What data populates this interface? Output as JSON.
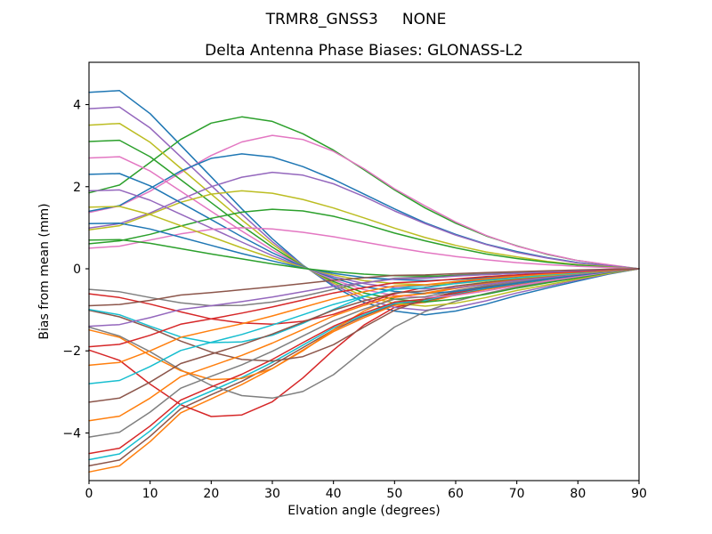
{
  "figure": {
    "suptitle": "TRMR8_GNSS3     NONE",
    "title": "Delta Antenna Phase Biases: GLONASS-L2"
  },
  "chart_data": {
    "type": "line",
    "suptitle": "TRMR8_GNSS3     NONE",
    "title": "Delta Antenna Phase Biases: GLONASS-L2",
    "xlabel": "Elvation angle (degrees)",
    "ylabel": "Bias from mean (mm)",
    "xlim": [
      0,
      90
    ],
    "ylim": [
      -5.16,
      5.03
    ],
    "xticks": {
      "values": [
        0,
        10,
        20,
        30,
        40,
        50,
        60,
        70,
        80,
        90
      ],
      "labels": [
        "0",
        "10",
        "20",
        "30",
        "40",
        "50",
        "60",
        "70",
        "80",
        "90"
      ]
    },
    "yticks": {
      "values": [
        -4,
        -2,
        0,
        2,
        4
      ],
      "labels": [
        "−4",
        "−2",
        "0",
        "2",
        "4"
      ]
    },
    "grid": false,
    "legend": "none",
    "frame_color": "#000000",
    "palette": [
      "#1f77b4",
      "#ff7f0e",
      "#2ca02c",
      "#d62728",
      "#9467bd",
      "#8c564b",
      "#e377c2",
      "#7f7f7f",
      "#bcbd22",
      "#17becf"
    ],
    "x": [
      0,
      5,
      10,
      15,
      20,
      25,
      30,
      35,
      40,
      45,
      50,
      55,
      60,
      65,
      70,
      75,
      80,
      85,
      90
    ],
    "series": [
      {
        "name": "line-01",
        "color": "#1f77b4",
        "y": [
          4.3,
          4.34,
          3.78,
          3.01,
          2.24,
          1.46,
          0.73,
          0.09,
          -0.43,
          -0.82,
          -1.03,
          -1.12,
          -1.03,
          -0.86,
          -0.65,
          -0.47,
          -0.3,
          -0.13,
          0.0
        ]
      },
      {
        "name": "line-02",
        "color": "#ff7f0e",
        "y": [
          -4.95,
          -4.8,
          -4.21,
          -3.51,
          -3.17,
          -2.82,
          -2.43,
          -1.98,
          -1.53,
          -1.19,
          -0.89,
          -0.82,
          -0.64,
          -0.5,
          -0.39,
          -0.27,
          -0.17,
          -0.08,
          0.0
        ]
      },
      {
        "name": "line-03",
        "color": "#2ca02c",
        "y": [
          1.85,
          2.04,
          2.59,
          3.15,
          3.55,
          3.7,
          3.59,
          3.29,
          2.89,
          2.41,
          1.92,
          1.48,
          1.11,
          0.8,
          0.56,
          0.35,
          0.2,
          0.09,
          0.0
        ]
      },
      {
        "name": "line-04",
        "color": "#d62728",
        "y": [
          -1.98,
          -2.23,
          -2.81,
          -3.31,
          -3.6,
          -3.56,
          -3.24,
          -2.66,
          -1.98,
          -1.37,
          -0.94,
          -0.79,
          -0.61,
          -0.47,
          -0.36,
          -0.25,
          -0.16,
          -0.07,
          0.0
        ]
      },
      {
        "name": "line-05",
        "color": "#9467bd",
        "y": [
          3.9,
          3.94,
          3.43,
          2.73,
          2.03,
          1.33,
          0.66,
          0.08,
          -0.39,
          -0.74,
          -0.94,
          -1.01,
          -0.94,
          -0.78,
          -0.59,
          -0.43,
          -0.27,
          -0.12,
          0.0
        ]
      },
      {
        "name": "line-06",
        "color": "#8c564b",
        "y": [
          -4.8,
          -4.66,
          -4.08,
          -3.41,
          -3.07,
          -2.74,
          -2.35,
          -1.92,
          -1.49,
          -1.15,
          -0.86,
          -0.79,
          -0.62,
          -0.48,
          -0.37,
          -0.26,
          -0.17,
          -0.08,
          0.0
        ]
      },
      {
        "name": "line-07",
        "color": "#e377c2",
        "y": [
          1.37,
          1.53,
          1.89,
          2.34,
          2.76,
          3.09,
          3.25,
          3.15,
          2.86,
          2.44,
          1.95,
          1.53,
          1.14,
          0.81,
          0.55,
          0.36,
          0.2,
          0.1,
          0.0
        ]
      },
      {
        "name": "line-08",
        "color": "#7f7f7f",
        "y": [
          -1.42,
          -1.64,
          -2.02,
          -2.46,
          -2.84,
          -3.09,
          -3.15,
          -2.99,
          -2.58,
          -1.98,
          -1.42,
          -1.04,
          -0.79,
          -0.6,
          -0.44,
          -0.32,
          -0.19,
          -0.09,
          0.0
        ]
      },
      {
        "name": "line-09",
        "color": "#bcbd22",
        "y": [
          3.5,
          3.54,
          3.08,
          2.45,
          1.82,
          1.19,
          0.6,
          0.07,
          -0.35,
          -0.67,
          -0.84,
          -0.91,
          -0.84,
          -0.7,
          -0.53,
          -0.39,
          -0.25,
          -0.11,
          0.0
        ]
      },
      {
        "name": "line-10",
        "color": "#17becf",
        "y": [
          -4.65,
          -4.51,
          -3.95,
          -3.3,
          -2.98,
          -2.65,
          -2.28,
          -1.86,
          -1.44,
          -1.12,
          -0.84,
          -0.77,
          -0.6,
          -0.47,
          -0.36,
          -0.26,
          -0.16,
          -0.07,
          0.0
        ]
      },
      {
        "name": "line-11",
        "color": "#1f77b4",
        "y": [
          1.4,
          1.54,
          1.96,
          2.38,
          2.69,
          2.8,
          2.72,
          2.49,
          2.18,
          1.82,
          1.46,
          1.12,
          0.84,
          0.6,
          0.42,
          0.27,
          0.15,
          0.07,
          0.0
        ]
      },
      {
        "name": "line-12",
        "color": "#ff7f0e",
        "y": [
          -1.49,
          -1.67,
          -2.11,
          -2.48,
          -2.7,
          -2.67,
          -2.43,
          -2.0,
          -1.49,
          -1.03,
          -0.7,
          -0.59,
          -0.46,
          -0.35,
          -0.27,
          -0.19,
          -0.12,
          -0.05,
          0.0
        ]
      },
      {
        "name": "line-13",
        "color": "#2ca02c",
        "y": [
          3.1,
          3.13,
          2.73,
          2.17,
          1.61,
          1.05,
          0.53,
          0.06,
          -0.31,
          -0.59,
          -0.74,
          -0.81,
          -0.74,
          -0.62,
          -0.47,
          -0.34,
          -0.22,
          -0.09,
          0.0
        ]
      },
      {
        "name": "line-14",
        "color": "#d62728",
        "y": [
          -4.5,
          -4.37,
          -3.83,
          -3.2,
          -2.88,
          -2.57,
          -2.21,
          -1.8,
          -1.4,
          -1.08,
          -0.81,
          -0.74,
          -0.59,
          -0.45,
          -0.35,
          -0.25,
          -0.16,
          -0.07,
          0.0
        ]
      },
      {
        "name": "line-15",
        "color": "#9467bd",
        "y": [
          0.99,
          1.1,
          1.36,
          1.69,
          2.0,
          2.23,
          2.35,
          2.28,
          2.07,
          1.76,
          1.41,
          1.1,
          0.82,
          0.59,
          0.4,
          0.26,
          0.14,
          0.07,
          0.0
        ]
      },
      {
        "name": "line-16",
        "color": "#8c564b",
        "y": [
          -1.01,
          -1.17,
          -1.44,
          -1.76,
          -2.03,
          -2.21,
          -2.25,
          -2.14,
          -1.85,
          -1.42,
          -1.01,
          -0.74,
          -0.56,
          -0.43,
          -0.32,
          -0.23,
          -0.14,
          -0.07,
          0.0
        ]
      },
      {
        "name": "line-17",
        "color": "#e377c2",
        "y": [
          2.7,
          2.73,
          2.38,
          1.89,
          1.4,
          0.92,
          0.46,
          0.05,
          -0.27,
          -0.51,
          -0.65,
          -0.7,
          -0.65,
          -0.54,
          -0.41,
          -0.3,
          -0.19,
          -0.08,
          0.0
        ]
      },
      {
        "name": "line-18",
        "color": "#7f7f7f",
        "y": [
          -4.1,
          -3.98,
          -3.49,
          -2.91,
          -2.62,
          -2.34,
          -2.01,
          -1.64,
          -1.27,
          -0.98,
          -0.74,
          -0.68,
          -0.53,
          -0.41,
          -0.32,
          -0.23,
          -0.14,
          -0.07,
          0.0
        ]
      },
      {
        "name": "line-19",
        "color": "#bcbd22",
        "y": [
          0.95,
          1.05,
          1.33,
          1.62,
          1.82,
          1.9,
          1.84,
          1.69,
          1.48,
          1.24,
          0.99,
          0.76,
          0.57,
          0.41,
          0.29,
          0.18,
          0.1,
          0.05,
          0.0
        ]
      },
      {
        "name": "line-20",
        "color": "#17becf",
        "y": [
          -0.99,
          -1.12,
          -1.4,
          -1.66,
          -1.8,
          -1.78,
          -1.62,
          -1.33,
          -0.99,
          -0.68,
          -0.47,
          -0.4,
          -0.31,
          -0.23,
          -0.18,
          -0.13,
          -0.08,
          -0.04,
          0.0
        ]
      },
      {
        "name": "line-21",
        "color": "#1f77b4",
        "y": [
          2.3,
          2.32,
          2.02,
          1.61,
          1.2,
          0.78,
          0.39,
          0.05,
          -0.23,
          -0.44,
          -0.55,
          -0.6,
          -0.55,
          -0.46,
          -0.35,
          -0.25,
          -0.16,
          -0.07,
          0.0
        ]
      },
      {
        "name": "line-22",
        "color": "#ff7f0e",
        "y": [
          -3.7,
          -3.59,
          -3.15,
          -2.63,
          -2.37,
          -2.11,
          -1.81,
          -1.48,
          -1.15,
          -0.89,
          -0.67,
          -0.61,
          -0.48,
          -0.37,
          -0.29,
          -0.2,
          -0.13,
          -0.06,
          0.0
        ]
      },
      {
        "name": "line-23",
        "color": "#2ca02c",
        "y": [
          0.61,
          0.68,
          0.84,
          1.04,
          1.23,
          1.38,
          1.45,
          1.41,
          1.28,
          1.09,
          0.87,
          0.68,
          0.51,
          0.36,
          0.25,
          0.16,
          0.09,
          0.04,
          0.0
        ]
      },
      {
        "name": "line-24",
        "color": "#d62728",
        "y": [
          -0.61,
          -0.7,
          -0.86,
          -1.05,
          -1.22,
          -1.32,
          -1.35,
          -1.28,
          -1.11,
          -0.85,
          -0.61,
          -0.45,
          -0.34,
          -0.26,
          -0.19,
          -0.14,
          -0.08,
          -0.04,
          0.0
        ]
      },
      {
        "name": "line-25",
        "color": "#9467bd",
        "y": [
          1.9,
          1.92,
          1.67,
          1.33,
          0.99,
          0.65,
          0.32,
          0.04,
          -0.19,
          -0.36,
          -0.46,
          -0.49,
          -0.46,
          -0.38,
          -0.29,
          -0.21,
          -0.13,
          -0.06,
          0.0
        ]
      },
      {
        "name": "line-26",
        "color": "#8c564b",
        "y": [
          -3.25,
          -3.15,
          -2.76,
          -2.31,
          -2.08,
          -1.85,
          -1.59,
          -1.3,
          -1.01,
          -0.78,
          -0.59,
          -0.54,
          -0.42,
          -0.33,
          -0.25,
          -0.18,
          -0.11,
          -0.05,
          0.0
        ]
      },
      {
        "name": "line-27",
        "color": "#e377c2",
        "y": [
          0.5,
          0.55,
          0.7,
          0.85,
          0.96,
          1.0,
          0.97,
          0.89,
          0.78,
          0.65,
          0.52,
          0.4,
          0.3,
          0.22,
          0.15,
          0.1,
          0.06,
          0.03,
          0.0
        ]
      },
      {
        "name": "line-28",
        "color": "#7f7f7f",
        "y": [
          -0.5,
          -0.56,
          -0.7,
          -0.83,
          -0.9,
          -0.89,
          -0.81,
          -0.67,
          -0.5,
          -0.34,
          -0.23,
          -0.2,
          -0.15,
          -0.12,
          -0.09,
          -0.06,
          -0.04,
          -0.02,
          0.0
        ]
      },
      {
        "name": "line-29",
        "color": "#bcbd22",
        "y": [
          1.5,
          1.52,
          1.32,
          1.05,
          0.78,
          0.51,
          0.26,
          0.03,
          -0.15,
          -0.29,
          -0.36,
          -0.39,
          -0.36,
          -0.3,
          -0.23,
          -0.17,
          -0.11,
          -0.05,
          0.0
        ]
      },
      {
        "name": "line-30",
        "color": "#17becf",
        "y": [
          -2.8,
          -2.72,
          -2.38,
          -1.99,
          -1.79,
          -1.6,
          -1.37,
          -1.12,
          -0.87,
          -0.67,
          -0.5,
          -0.46,
          -0.36,
          -0.28,
          -0.22,
          -0.15,
          -0.1,
          -0.04,
          0.0
        ]
      },
      {
        "name": "line-31",
        "color": "#1f77b4",
        "y": [
          1.1,
          1.11,
          0.97,
          0.77,
          0.57,
          0.37,
          0.19,
          0.02,
          -0.11,
          -0.21,
          -0.26,
          -0.29,
          -0.26,
          -0.22,
          -0.17,
          -0.12,
          -0.08,
          -0.03,
          0.0
        ]
      },
      {
        "name": "line-32",
        "color": "#ff7f0e",
        "y": [
          -2.35,
          -2.28,
          -2.0,
          -1.67,
          -1.5,
          -1.34,
          -1.15,
          -0.94,
          -0.73,
          -0.56,
          -0.42,
          -0.39,
          -0.31,
          -0.24,
          -0.18,
          -0.13,
          -0.08,
          -0.04,
          0.0
        ]
      },
      {
        "name": "line-33",
        "color": "#2ca02c",
        "y": [
          0.7,
          0.71,
          0.62,
          0.49,
          0.36,
          0.24,
          0.12,
          0.01,
          -0.07,
          -0.13,
          -0.17,
          -0.18,
          -0.17,
          -0.14,
          -0.11,
          -0.08,
          -0.05,
          -0.02,
          0.0
        ]
      },
      {
        "name": "line-34",
        "color": "#d62728",
        "y": [
          -1.9,
          -1.84,
          -1.62,
          -1.35,
          -1.22,
          -1.08,
          -0.93,
          -0.76,
          -0.59,
          -0.46,
          -0.34,
          -0.31,
          -0.25,
          -0.19,
          -0.15,
          -0.1,
          -0.07,
          -0.03,
          0.0
        ]
      },
      {
        "name": "line-35",
        "color": "#9467bd",
        "y": [
          -1.4,
          -1.36,
          -1.19,
          -0.99,
          -0.9,
          -0.8,
          -0.69,
          -0.56,
          -0.43,
          -0.34,
          -0.25,
          -0.23,
          -0.18,
          -0.14,
          -0.11,
          -0.08,
          -0.05,
          -0.02,
          0.0
        ]
      },
      {
        "name": "line-36",
        "color": "#8c564b",
        "y": [
          -0.9,
          -0.87,
          -0.77,
          -0.64,
          -0.58,
          -0.51,
          -0.44,
          -0.36,
          -0.28,
          -0.22,
          -0.16,
          -0.15,
          -0.12,
          -0.09,
          -0.07,
          -0.05,
          -0.03,
          -0.01,
          0.0
        ]
      }
    ]
  }
}
